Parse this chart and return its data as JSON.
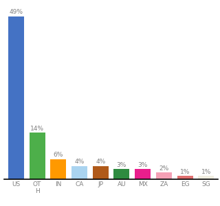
{
  "categories": [
    "US",
    "OT\nH",
    "IN",
    "CA",
    "JP",
    "AU",
    "MX",
    "ZA",
    "EG",
    "SG"
  ],
  "values": [
    49,
    14,
    6,
    4,
    4,
    3,
    3,
    2,
    1,
    1
  ],
  "bar_colors": [
    "#4472c4",
    "#4daf4a",
    "#ff9900",
    "#aad4f0",
    "#b05a1a",
    "#2e8b40",
    "#e91e8c",
    "#f4a0b5",
    "#e07070",
    "#f0ede0"
  ],
  "ylim": [
    0,
    52
  ],
  "bar_width": 0.75,
  "label_fontsize": 6.5,
  "tick_fontsize": 6.5
}
